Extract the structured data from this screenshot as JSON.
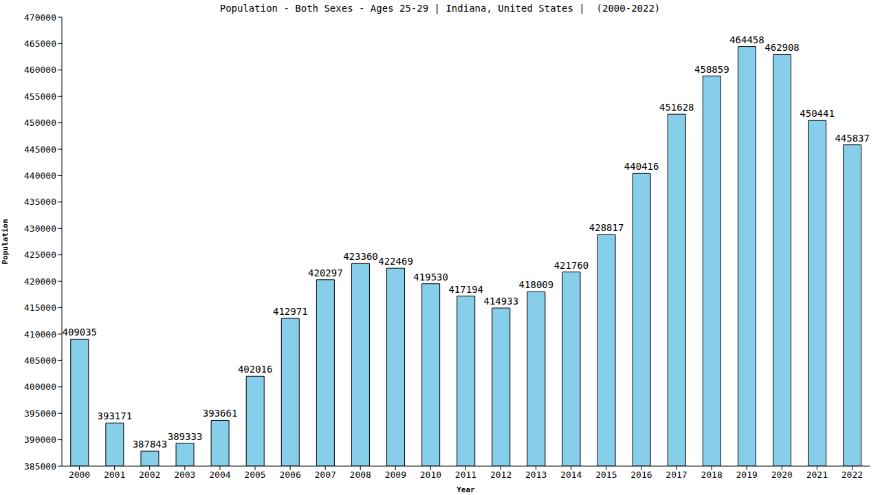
{
  "chart_data": {
    "type": "bar",
    "title": "Population - Both Sexes - Ages 25-29 | Indiana, United States |  (2000-2022)",
    "x_label": "Year",
    "y_label": "Population",
    "categories": [
      "2000",
      "2001",
      "2002",
      "2003",
      "2004",
      "2005",
      "2006",
      "2007",
      "2008",
      "2009",
      "2010",
      "2011",
      "2012",
      "2013",
      "2014",
      "2015",
      "2016",
      "2017",
      "2018",
      "2019",
      "2020",
      "2021",
      "2022"
    ],
    "values": [
      409035,
      393171,
      387843,
      389333,
      393661,
      402016,
      412971,
      420297,
      423360,
      422469,
      419530,
      417194,
      414933,
      418009,
      421760,
      428817,
      440416,
      451628,
      458859,
      464458,
      462908,
      450441,
      445837
    ],
    "color": "#87ceeb",
    "ylim": [
      385000,
      470000
    ],
    "yticks": [
      385000,
      390000,
      395000,
      400000,
      405000,
      410000,
      415000,
      420000,
      425000,
      430000,
      435000,
      440000,
      445000,
      450000,
      455000,
      460000,
      465000,
      470000
    ],
    "grid": false,
    "data_labels": true
  }
}
